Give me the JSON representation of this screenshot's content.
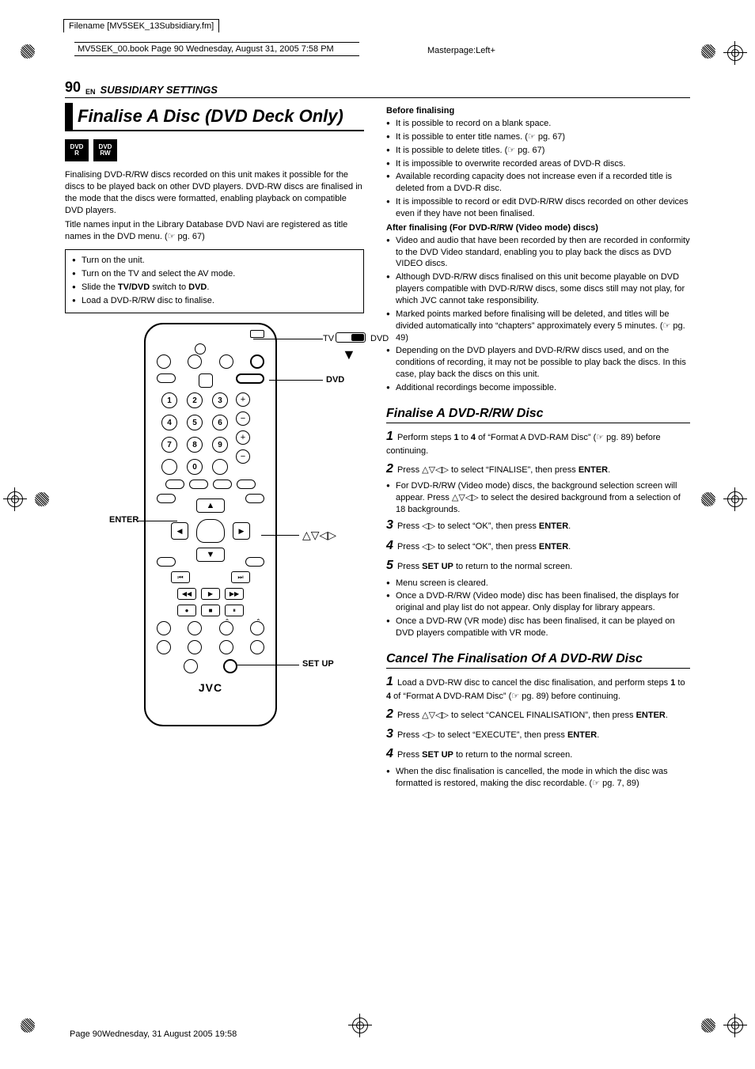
{
  "meta": {
    "filename": "Filename [MV5SEK_13Subsidiary.fm]",
    "book_info": "MV5SEK_00.book  Page 90  Wednesday, August 31, 2005  7:58 PM",
    "masterpage": "Masterpage:Left+",
    "footer": "Page 90Wednesday, 31 August 2005  19:58"
  },
  "header": {
    "page_number": "90",
    "lang": "EN",
    "section": "SUBSIDIARY SETTINGS"
  },
  "title": "Finalise A Disc (DVD Deck Only)",
  "disc_icons": [
    "DVD R",
    "DVD RW"
  ],
  "intro_p1": "Finalising DVD-R/RW discs recorded on this unit makes it possible for the discs to be played back on other DVD players. DVD-RW discs are finalised in the mode that the discs were formatted, enabling playback on compatible DVD players.",
  "intro_p2": "Title names input in the Library Database DVD Navi are registered as title names in the DVD menu. (☞ pg. 67)",
  "prep_box": [
    "Turn on the unit.",
    "Turn on the TV and select the AV mode.",
    "Slide the <b>TV/DVD</b> switch to <b>DVD</b>.",
    "Load a DVD-R/RW disc to finalise."
  ],
  "remote_labels": {
    "tv": "TV",
    "dvd_sw": "DVD",
    "dvd": "DVD",
    "enter": "ENTER",
    "arrows": "△▽◁▷",
    "setup": "SET UP",
    "logo": "JVC"
  },
  "before": {
    "heading": "Before finalising",
    "items": [
      "It is possible to record on a blank space.",
      "It is possible to enter title names. (☞ pg. 67)",
      "It is possible to delete titles. (☞ pg. 67)",
      "It is impossible to overwrite recorded areas of DVD-R discs.",
      "Available recording capacity does not increase even if a recorded title is deleted from a DVD-R disc.",
      "It is impossible to record or edit DVD-R/RW discs recorded on other devices even if they have not been finalised."
    ]
  },
  "after": {
    "heading": "After finalising (For DVD-R/RW (Video mode) discs)",
    "items": [
      "Video and audio that have been recorded by then are recorded in conformity to the DVD Video standard, enabling you to play back the discs as DVD VIDEO discs.",
      "Although DVD-R/RW discs finalised on this unit become playable on DVD players compatible with DVD-R/RW discs, some discs still may not play, for which JVC cannot take responsibility.",
      "Marked points marked before finalising will be deleted, and titles will be divided automatically into “chapters” approximately every 5 minutes. (☞ pg. 49)",
      "Depending on the DVD players and DVD-R/RW discs used, and on the conditions of recording, it may not be possible to play back the discs. In this case, play back the discs on this unit.",
      "Additional recordings become impossible."
    ]
  },
  "finalise": {
    "heading": "Finalise A DVD-R/RW Disc",
    "s1": "Perform steps <b>1</b> to <b>4</b> of “Format A DVD-RAM Disc” (☞ pg. 89) before continuing.",
    "s2": "Press △▽◁▷ to select “FINALISE”, then press <b>ENTER</b>.",
    "s2_note": "For DVD-R/RW (Video mode) discs, the background selection screen will appear. Press △▽◁▷ to select the desired background from a selection of 18 backgrounds.",
    "s3": "Press ◁▷ to select “OK”, then press <b>ENTER</b>.",
    "s4": "Press ◁▷ to select “OK”, then press <b>ENTER</b>.",
    "s5": "Press <b>SET UP</b> to return to the normal screen.",
    "s5_notes": [
      "Menu screen is cleared.",
      "Once a DVD-R/RW (Video mode) disc has been finalised, the displays for original and play list do not appear. Only display for library appears.",
      "Once a DVD-RW (VR mode) disc has been finalised, it can be played on DVD players compatible with VR mode."
    ]
  },
  "cancel": {
    "heading": "Cancel The Finalisation Of A DVD-RW Disc",
    "s1": "Load a DVD-RW disc to cancel the disc finalisation, and perform steps <b>1</b> to <b>4</b> of “Format A DVD-RAM Disc” (☞ pg. 89) before continuing.",
    "s2": "Press △▽◁▷ to select “CANCEL FINALISATION”, then press <b>ENTER</b>.",
    "s3": "Press ◁▷ to select “EXECUTE”, then press <b>ENTER</b>.",
    "s4": "Press <b>SET UP</b> to return to the normal screen.",
    "s4_note": "When the disc finalisation is cancelled, the mode in which the disc was formatted is restored, making the disc recordable. (☞ pg. 7, 89)"
  },
  "colors": {
    "text": "#000000",
    "bg": "#ffffff"
  }
}
